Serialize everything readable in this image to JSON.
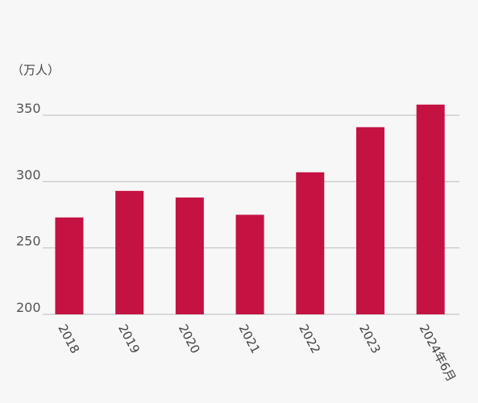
{
  "chart_data": {
    "type": "bar",
    "y_label": "（万人）",
    "categories": [
      "2018",
      "2019",
      "2020",
      "2021",
      "2022",
      "2023",
      "2024年6月"
    ],
    "values": [
      273,
      293,
      288,
      275,
      307,
      341,
      358
    ],
    "color": "#c41243",
    "ylim": [
      200,
      360
    ],
    "yticks": [
      200,
      250,
      300,
      350
    ],
    "grid": true
  }
}
